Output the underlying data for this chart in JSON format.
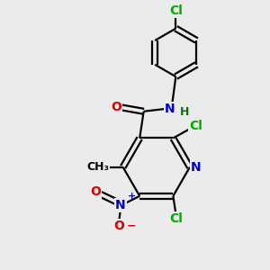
{
  "background_color": "#ebebeb",
  "bond_color": "#000000",
  "atom_colors": {
    "C": "#000000",
    "N": "#0000cc",
    "O": "#dd0000",
    "Cl": "#00aa00",
    "H": "#007700"
  },
  "figsize": [
    3.0,
    3.0
  ],
  "dpi": 100,
  "xlim": [
    0,
    10
  ],
  "ylim": [
    0,
    10
  ]
}
